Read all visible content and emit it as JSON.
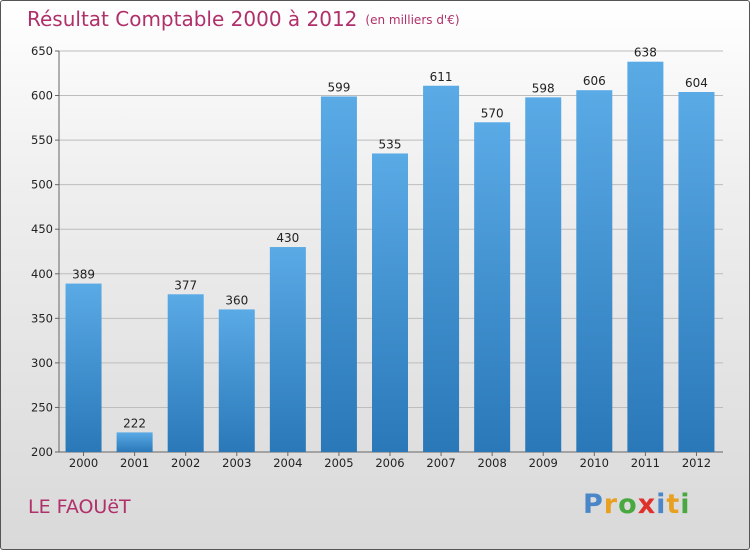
{
  "title": "Résultat Comptable 2000 à 2012",
  "subtitle": "(en milliers d'€)",
  "place": "LE FAOUëT",
  "logo": {
    "text": "Proxiti",
    "letters": [
      {
        "ch": "P",
        "color": "#4a86c8"
      },
      {
        "ch": "r",
        "color": "#e8a020"
      },
      {
        "ch": "o",
        "color": "#4aa840"
      },
      {
        "ch": "x",
        "color": "#e0302c"
      },
      {
        "ch": "i",
        "color": "#4a86c8"
      },
      {
        "ch": "t",
        "color": "#e8a020"
      },
      {
        "ch": "i",
        "color": "#4aa840"
      }
    ]
  },
  "chart_data": {
    "type": "bar",
    "title": "Résultat Comptable 2000 à 2012",
    "subtitle": "(en milliers d'€)",
    "xlabel": "",
    "ylabel": "",
    "categories": [
      "2000",
      "2001",
      "2002",
      "2003",
      "2004",
      "2005",
      "2006",
      "2007",
      "2008",
      "2009",
      "2010",
      "2011",
      "2012"
    ],
    "values": [
      389,
      222,
      377,
      360,
      430,
      599,
      535,
      611,
      570,
      598,
      606,
      638,
      604
    ],
    "ylim": [
      200,
      650
    ],
    "yticks": [
      200,
      250,
      300,
      350,
      400,
      450,
      500,
      550,
      600,
      650
    ],
    "grid": true,
    "bar_color_top": "#5aaae6",
    "bar_color_bottom": "#2a78b8"
  }
}
